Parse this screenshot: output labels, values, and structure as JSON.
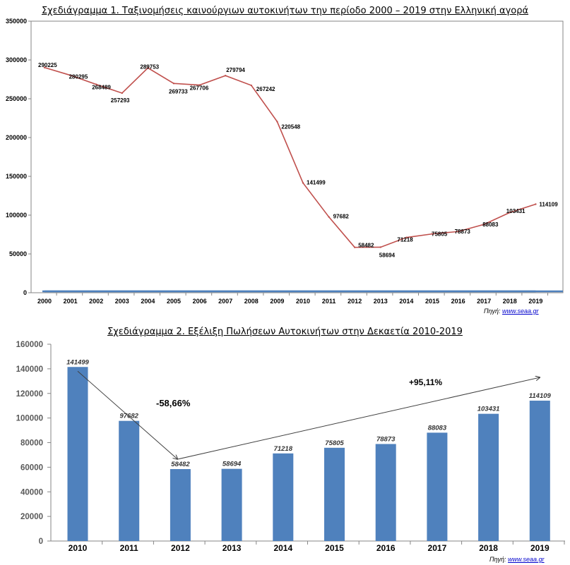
{
  "chart_data": [
    {
      "type": "line",
      "title": "Σχεδιάγραμμα 1. Ταξινομήσεις καινούργιων αυτοκινήτων την περίοδο 2000 – 2019 στην Ελληνική αγορά",
      "categories": [
        "2000",
        "2001",
        "2002",
        "2003",
        "2004",
        "2005",
        "2006",
        "2007",
        "2008",
        "2009",
        "2010",
        "2011",
        "2012",
        "2013",
        "2014",
        "2015",
        "2016",
        "2017",
        "2018",
        "2019"
      ],
      "series": [
        {
          "values": [
            290225,
            280295,
            268489,
            257293,
            289753,
            269733,
            267706,
            279794,
            267242,
            220548,
            141499,
            97682,
            58482,
            58694,
            71218,
            75805,
            78873,
            88083,
            103431,
            114109
          ],
          "color": "#c0504d"
        },
        {
          "values": [
            0,
            0,
            0,
            0,
            0,
            0,
            0,
            0,
            0,
            0,
            0,
            0,
            0,
            0,
            0,
            0,
            0,
            0,
            0,
            0
          ],
          "color": "#4f81bd"
        }
      ],
      "ylim": [
        0,
        350000
      ],
      "yticks": [
        "0",
        "50000",
        "100000",
        "150000",
        "200000",
        "250000",
        "300000",
        "350000"
      ],
      "grid": false,
      "source_label": "Πηγή:",
      "source_link": "www.seaa.gr"
    },
    {
      "type": "bar",
      "title": "Σχεδιάγραμμα 2. Εξέλιξη Πωλήσεων Αυτοκινήτων στην Δεκαετία 2010-2019",
      "categories": [
        "2010",
        "2011",
        "2012",
        "2013",
        "2014",
        "2015",
        "2016",
        "2017",
        "2018",
        "2019"
      ],
      "values": [
        141499,
        97682,
        58482,
        58694,
        71218,
        75805,
        78873,
        88083,
        103431,
        114109
      ],
      "bar_color": "#4f81bd",
      "ylim": [
        0,
        160000
      ],
      "yticks": [
        "0",
        "20000",
        "40000",
        "60000",
        "80000",
        "100000",
        "120000",
        "140000",
        "160000"
      ],
      "grid": false,
      "annotations": [
        "-58,66%",
        "+95,11%"
      ],
      "source_label": "Πηγή:",
      "source_link": "www.seaa.gr"
    }
  ]
}
